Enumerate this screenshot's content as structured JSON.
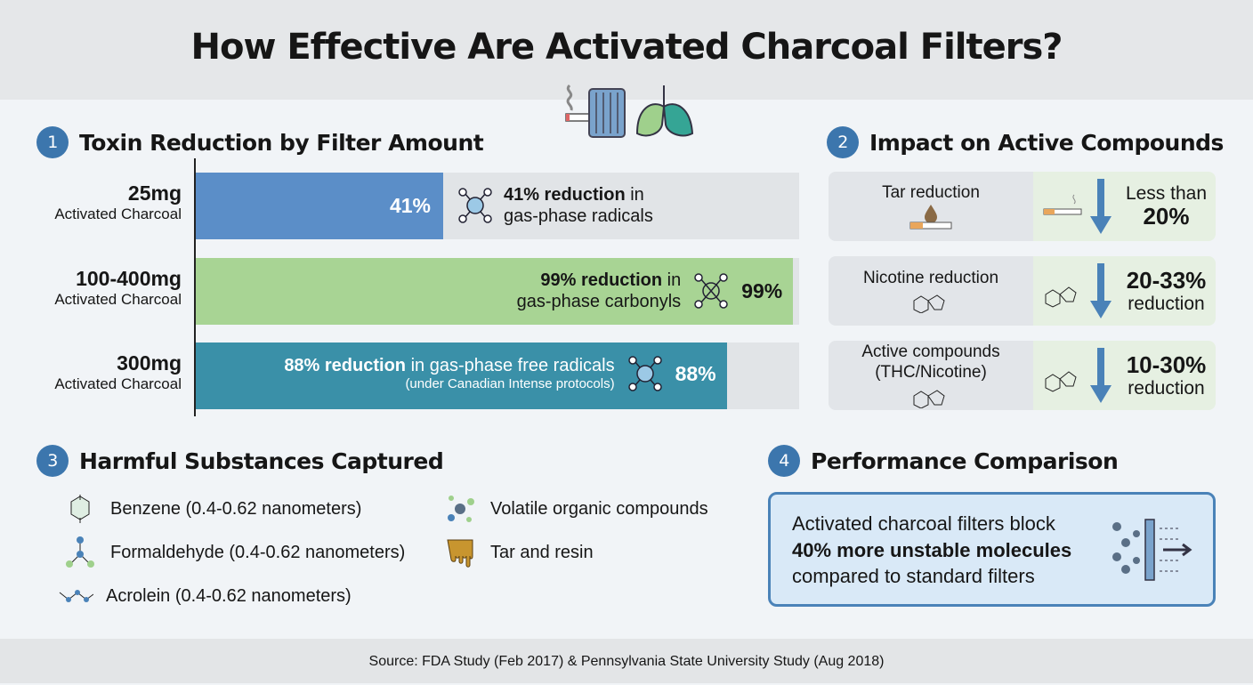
{
  "title": "How Effective Are Activated Charcoal Filters?",
  "colors": {
    "accent": "#3c76ad",
    "bar1": "#5b8ec8",
    "bar2": "#a8d494",
    "bar3": "#3a90a8"
  },
  "section1": {
    "number": "1",
    "title": "Toxin Reduction by Filter Amount"
  },
  "chart_data": {
    "type": "bar",
    "orientation": "horizontal",
    "xlim": [
      0,
      100
    ],
    "categories": [
      "25mg",
      "100-400mg",
      "300mg"
    ],
    "category_sublabel": "Activated Charcoal",
    "values": [
      41,
      99,
      88
    ],
    "value_labels": [
      "41%",
      "99%",
      "88%"
    ],
    "annotations": [
      {
        "bold": "41% reduction",
        "text": " in",
        "line2": "gas-phase radicals"
      },
      {
        "bold": "99% reduction",
        "text": " in",
        "line2": "gas-phase carbonyls"
      },
      {
        "bold": "88% reduction",
        "text": " in gas-phase free radicals",
        "line2": "(under Canadian Intense protocols)"
      }
    ]
  },
  "section2": {
    "number": "2",
    "title": "Impact on Active Compounds",
    "rows": [
      {
        "label": "Tar reduction",
        "line1": "Less than",
        "line2": "20%"
      },
      {
        "label": "Nicotine reduction",
        "line1": "20-33%",
        "line2": "reduction"
      },
      {
        "label": "Active compounds\n(THC/Nicotine)",
        "line1": "10-30%",
        "line2": "reduction"
      }
    ]
  },
  "section3": {
    "number": "3",
    "title": "Harmful Substances Captured",
    "items": [
      "Benzene (0.4-0.62 nanometers)",
      "Formaldehyde (0.4-0.62 nanometers)",
      "Acrolein (0.4-0.62 nanometers)",
      "Volatile organic compounds",
      "Tar and resin"
    ]
  },
  "section4": {
    "number": "4",
    "title": "Performance Comparison",
    "line1": "Activated charcoal filters block",
    "bold": "40% more unstable molecules",
    "line3": "compared to standard filters"
  },
  "footer": "Source: FDA Study (Feb 2017) & Pennsylvania State University Study (Aug 2018)"
}
